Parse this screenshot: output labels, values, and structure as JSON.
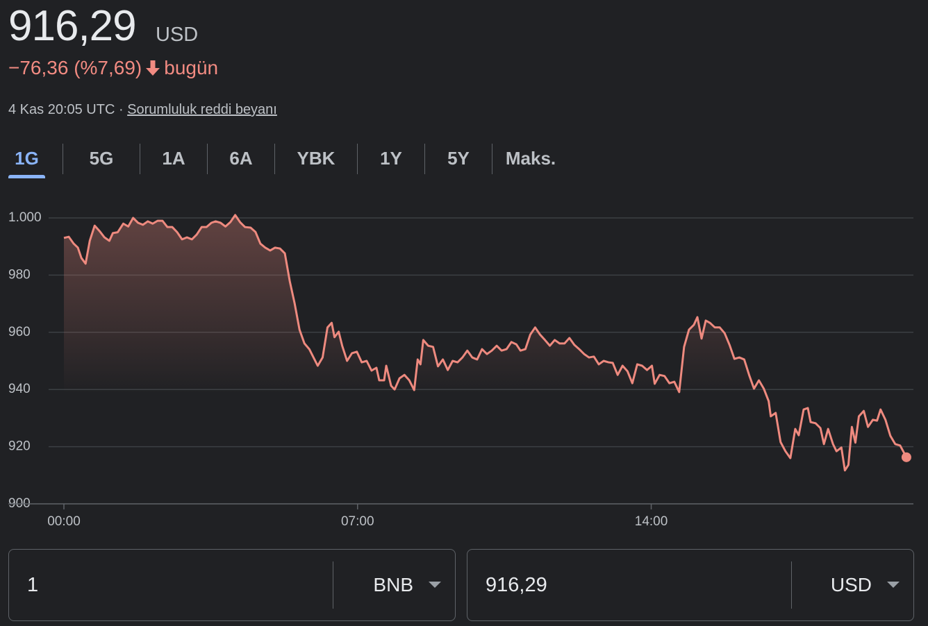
{
  "header": {
    "price": "916,29",
    "currency": "USD",
    "change": "−76,36 (%7,69)",
    "change_suffix": "bugün",
    "timestamp": "4 Kas 20:05 UTC ·",
    "disclaimer": "Sorumluluk reddi beyanı"
  },
  "tabs": [
    "1G",
    "5G",
    "1A",
    "6A",
    "YBK",
    "1Y",
    "5Y",
    "Maks."
  ],
  "chart_data": {
    "type": "line",
    "color": "#ee8a7f",
    "grid": true,
    "x": [
      0,
      7,
      14,
      20,
      25,
      31,
      37,
      44,
      51,
      58,
      65,
      70,
      77,
      85,
      92,
      99,
      106,
      113,
      120,
      127,
      134,
      141,
      148,
      155,
      162,
      169,
      176,
      183,
      190,
      197,
      204,
      211,
      217,
      224,
      231,
      238,
      245,
      252,
      259,
      267,
      274,
      281,
      288,
      295,
      302,
      309,
      316,
      323,
      330,
      337,
      344,
      351,
      357,
      363,
      370,
      377,
      383,
      387,
      393,
      398,
      405,
      412,
      419,
      426,
      433,
      440,
      447,
      451,
      458,
      461,
      468,
      473,
      480,
      487,
      494,
      501,
      506,
      510,
      514,
      521,
      528,
      535,
      542,
      549,
      556,
      563,
      570,
      577,
      584,
      591,
      598,
      605,
      612,
      619,
      626,
      633,
      640,
      647,
      653,
      660,
      667,
      674,
      681,
      688,
      695,
      702,
      709,
      716,
      723,
      730,
      737,
      744,
      751,
      758,
      765,
      772,
      779,
      785,
      792,
      799,
      806,
      813,
      820,
      827,
      834,
      841,
      845,
      852,
      859,
      866,
      873,
      880,
      887,
      894,
      901,
      906,
      912,
      918,
      924,
      931,
      938,
      945,
      952,
      959,
      966,
      973,
      980,
      987,
      994,
      1001,
      1008,
      1011,
      1018,
      1025,
      1032,
      1039,
      1046,
      1051,
      1058,
      1064,
      1068,
      1075,
      1082,
      1087,
      1093,
      1100,
      1105,
      1112,
      1117,
      1122,
      1127,
      1132,
      1137,
      1144,
      1150,
      1157,
      1163,
      1168,
      1175,
      1182,
      1189,
      1196,
      1205
    ],
    "values": [
      993,
      993.4,
      991,
      989.6,
      986,
      984,
      992,
      997.3,
      995.4,
      993.2,
      992,
      994.7,
      995,
      998,
      997,
      1000,
      998.3,
      997.6,
      998.8,
      998,
      999,
      999,
      996.8,
      996.8,
      995,
      992.5,
      993.2,
      992.5,
      994.2,
      996.8,
      996.8,
      998.3,
      998.8,
      998.3,
      997,
      998.5,
      1001,
      998.5,
      996.8,
      996.6,
      995.1,
      991,
      989.6,
      988.6,
      989.6,
      989.3,
      987.6,
      977.9,
      970.1,
      960.9,
      956.1,
      954.1,
      951.2,
      948.3,
      951.2,
      961.7,
      963.3,
      958.3,
      960.2,
      955.3,
      950,
      952.7,
      953.2,
      949.5,
      950,
      946.6,
      947.6,
      943.2,
      943.2,
      948.3,
      941.3,
      940,
      943.9,
      945.1,
      943.2,
      939.8,
      950.5,
      948.8,
      957.3,
      955.3,
      954.9,
      948.1,
      950.5,
      946.8,
      950,
      949.5,
      951.2,
      953.6,
      951.2,
      950.5,
      954.1,
      952.4,
      953.6,
      955.3,
      953.6,
      954.1,
      956.6,
      955.8,
      953.6,
      954.1,
      959.2,
      961.7,
      959.2,
      957.3,
      955.3,
      957.3,
      956.1,
      956.1,
      958,
      955.6,
      954.1,
      952.4,
      951.2,
      951.5,
      948.8,
      950,
      949.5,
      949.3,
      945.1,
      948.3,
      946.4,
      942.2,
      948.8,
      948.3,
      946.8,
      948.3,
      942,
      945.1,
      944.7,
      942.2,
      942.7,
      939.1,
      954.9,
      960.9,
      962.6,
      965.3,
      957.8,
      964.1,
      963.3,
      961.7,
      961.7,
      959.7,
      955.6,
      950.7,
      951.2,
      950.5,
      945.1,
      940.3,
      943.2,
      940.3,
      935.9,
      930.6,
      931.8,
      921.6,
      918.4,
      916,
      926.2,
      924,
      933,
      933.5,
      928.6,
      928.2,
      926.5,
      920.9,
      926.2,
      920.9,
      918.4,
      919.7,
      911.7,
      913.6,
      926.9,
      921.4,
      930.6,
      932.5,
      926.9,
      929.4,
      929.1,
      933,
      929.4,
      923.8,
      920.9,
      920.4,
      916.3
    ],
    "xlim": [
      0,
      1215
    ],
    "ylim": [
      900,
      1000
    ],
    "xticks": [
      {
        "value": 0,
        "label": "00:00"
      },
      {
        "value": 420,
        "label": "07:00"
      },
      {
        "value": 840,
        "label": "14:00"
      }
    ],
    "yticks": [
      900,
      920,
      940,
      960,
      980,
      {
        "value": 1000,
        "label": "1.000"
      }
    ]
  },
  "converter": {
    "from": {
      "amount": "1",
      "unit": "BNB"
    },
    "to": {
      "amount": "916,29",
      "unit": "USD"
    }
  }
}
